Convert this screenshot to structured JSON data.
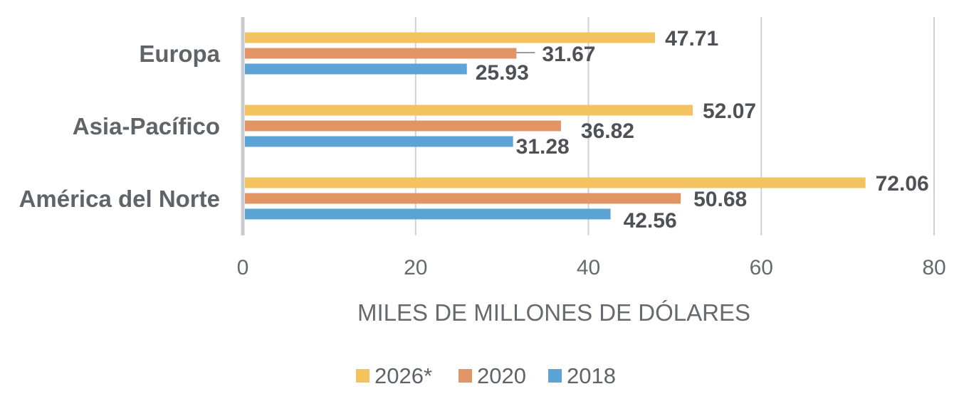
{
  "chart_data": {
    "type": "bar",
    "orientation": "horizontal",
    "categories": [
      "Europa",
      "Asia-Pacífico",
      "América del Norte"
    ],
    "series": [
      {
        "name": "2026*",
        "color": "#f2c35f",
        "values": [
          47.71,
          52.07,
          72.06
        ],
        "labels": [
          "47.71",
          "52.07",
          "72.06"
        ]
      },
      {
        "name": "2020",
        "color": "#e19564",
        "values": [
          31.67,
          36.82,
          50.68
        ],
        "labels": [
          "31.67",
          "36.82",
          "50.68"
        ]
      },
      {
        "name": "2018",
        "color": "#5da4d6",
        "values": [
          25.93,
          31.28,
          42.56
        ],
        "labels": [
          "25.93",
          "31.28",
          "42.56"
        ]
      }
    ],
    "title": "",
    "xlabel": "MILES DE MILLONES DE DÓLARES",
    "ylabel": "",
    "xlim": [
      0,
      80
    ],
    "xticks": [
      0,
      20,
      40,
      60,
      80
    ],
    "xtick_labels": [
      "0",
      "20",
      "40",
      "60",
      "80"
    ],
    "grid": "vertical",
    "legend_position": "bottom"
  }
}
